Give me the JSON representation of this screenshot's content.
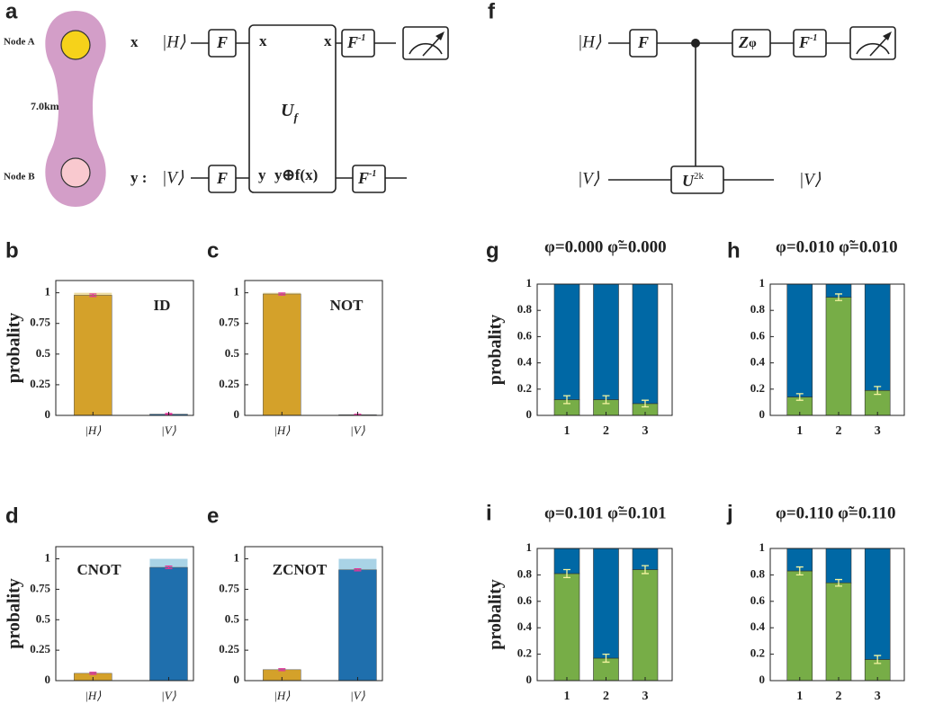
{
  "diagram_a": {
    "label": "a",
    "node_a": "Node A",
    "node_b": "Node B",
    "distance": "7.0km",
    "wire_x": "x",
    "wire_y": "y :",
    "state_h": "|H⟩",
    "state_v": "|V⟩",
    "gate": "F",
    "inverse_gate": {
      "base": "F",
      "sup": "-1"
    },
    "oracle": {
      "base": "U",
      "sub": "f"
    },
    "oracle_in_x": "x",
    "oracle_out_x": "x",
    "oracle_in_y": "y",
    "oracle_out_y": "y⊕f(x)"
  },
  "diagram_f": {
    "label": "f",
    "state_h": "|H⟩",
    "state_v_in": "|V⟩",
    "state_v_out": "|V⟩",
    "gate": "F",
    "phase": {
      "base": "Z",
      "sub": "φ"
    },
    "inverse_gate": {
      "base": "F",
      "sup": "-1"
    },
    "controlled": {
      "base": "U",
      "sup": "2k"
    }
  },
  "chart_data": [
    {
      "type": "bar",
      "label": "b",
      "annotation": "ID",
      "y_label": "probality",
      "categories": [
        "|H⟩",
        "|V⟩"
      ],
      "values": [
        0.98,
        0.01
      ],
      "errors": [
        0.01,
        0.005
      ],
      "ideal_values": [
        1,
        0
      ],
      "colors": [
        "#d4a12a",
        "#1f6fad"
      ],
      "ideal_colors": [
        "#ecdca2",
        "#a9d3e6"
      ],
      "error_color": "#e0359a",
      "ylim": [
        0,
        1.1
      ],
      "yticks": [
        0,
        0.25,
        0.5,
        0.75,
        1
      ]
    },
    {
      "type": "bar",
      "label": "c",
      "annotation": "NOT",
      "categories": [
        "|H⟩",
        "|V⟩"
      ],
      "values": [
        0.99,
        0.005
      ],
      "errors": [
        0.008,
        0.004
      ],
      "ideal_values": [
        1,
        0
      ],
      "colors": [
        "#d4a12a",
        "#1f6fad"
      ],
      "ideal_colors": [
        "#ecdca2",
        "#a9d3e6"
      ],
      "error_color": "#e0359a",
      "ylim": [
        0,
        1.1
      ],
      "yticks": [
        0,
        0.25,
        0.5,
        0.75,
        1
      ]
    },
    {
      "type": "bar",
      "label": "d",
      "annotation": "CNOT",
      "y_label": "probality",
      "categories": [
        "|H⟩",
        "|V⟩"
      ],
      "values": [
        0.06,
        0.93
      ],
      "errors": [
        0.008,
        0.01
      ],
      "ideal_values": [
        0,
        1
      ],
      "colors": [
        "#d4a12a",
        "#1f6fad"
      ],
      "ideal_colors": [
        "#ecdca2",
        "#a9d3e6"
      ],
      "error_color": "#e0359a",
      "ylim": [
        0,
        1.1
      ],
      "yticks": [
        0,
        0.25,
        0.5,
        0.75,
        1
      ]
    },
    {
      "type": "bar",
      "label": "e",
      "annotation": "ZCNOT",
      "categories": [
        "|H⟩",
        "|V⟩"
      ],
      "values": [
        0.09,
        0.91
      ],
      "errors": [
        0.008,
        0.008
      ],
      "ideal_values": [
        0,
        1
      ],
      "colors": [
        "#d4a12a",
        "#1f6fad"
      ],
      "ideal_colors": [
        "#ecdca2",
        "#a9d3e6"
      ],
      "error_color": "#e0359a",
      "ylim": [
        0,
        1.1
      ],
      "yticks": [
        0,
        0.25,
        0.5,
        0.75,
        1
      ]
    },
    {
      "type": "stacked_bar",
      "label": "g",
      "title": "φ=0.000  φ̃=0.000",
      "y_label": "probality",
      "categories": [
        "1",
        "2",
        "3"
      ],
      "series": [
        {
          "color": "#77ad47",
          "values": [
            0.12,
            0.12,
            0.09
          ],
          "errors": [
            0.03,
            0.03,
            0.025
          ]
        },
        {
          "color": "#0068a5",
          "values": [
            0.88,
            0.88,
            0.91
          ]
        }
      ],
      "error_color": "#f4f4a0",
      "ylim": [
        0,
        1
      ],
      "yticks": [
        0,
        0.2,
        0.4,
        0.6,
        0.8,
        1
      ]
    },
    {
      "type": "stacked_bar",
      "label": "h",
      "title": "φ=0.010  φ̃=0.010",
      "categories": [
        "1",
        "2",
        "3"
      ],
      "series": [
        {
          "color": "#77ad47",
          "values": [
            0.14,
            0.9,
            0.19
          ],
          "errors": [
            0.025,
            0.025,
            0.03
          ]
        },
        {
          "color": "#0068a5",
          "values": [
            0.86,
            0.1,
            0.81
          ]
        }
      ],
      "error_color": "#f4f4a0",
      "ylim": [
        0,
        1
      ],
      "yticks": [
        0,
        0.2,
        0.4,
        0.6,
        0.8,
        1
      ]
    },
    {
      "type": "stacked_bar",
      "label": "i",
      "title": "φ=0.101  φ̃=0.101",
      "y_label": "probality",
      "categories": [
        "1",
        "2",
        "3"
      ],
      "series": [
        {
          "color": "#77ad47",
          "values": [
            0.81,
            0.17,
            0.84
          ],
          "errors": [
            0.03,
            0.03,
            0.03
          ]
        },
        {
          "color": "#0068a5",
          "values": [
            0.19,
            0.83,
            0.16
          ]
        }
      ],
      "error_color": "#f4f4a0",
      "ylim": [
        0,
        1
      ],
      "yticks": [
        0,
        0.2,
        0.4,
        0.6,
        0.8,
        1
      ]
    },
    {
      "type": "stacked_bar",
      "label": "j",
      "title": "φ=0.110  φ̃=0.110",
      "categories": [
        "1",
        "2",
        "3"
      ],
      "series": [
        {
          "color": "#77ad47",
          "values": [
            0.83,
            0.74,
            0.16
          ],
          "errors": [
            0.03,
            0.025,
            0.03
          ]
        },
        {
          "color": "#0068a5",
          "values": [
            0.17,
            0.26,
            0.84
          ]
        }
      ],
      "error_color": "#f4f4a0",
      "ylim": [
        0,
        1
      ],
      "yticks": [
        0,
        0.2,
        0.4,
        0.6,
        0.8,
        1
      ]
    }
  ]
}
